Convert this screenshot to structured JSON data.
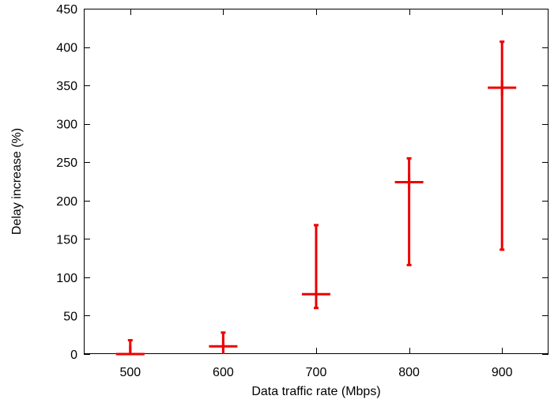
{
  "chart_data": {
    "type": "scatter",
    "title": "",
    "xlabel": "Data traffic rate (Mbps)",
    "ylabel": "Delay increase (%)",
    "xlim": [
      450,
      950
    ],
    "ylim": [
      0,
      450
    ],
    "xticks": [
      500,
      600,
      700,
      800,
      900
    ],
    "yticks": [
      0,
      50,
      100,
      150,
      200,
      250,
      300,
      350,
      400,
      450
    ],
    "grid": false,
    "legend": "none",
    "series": [
      {
        "color": "#ee0000",
        "marker": "plus",
        "points": [
          {
            "x": 500,
            "y": 0,
            "ymin": 0,
            "ymax": 18
          },
          {
            "x": 600,
            "y": 10,
            "ymin": 0,
            "ymax": 28
          },
          {
            "x": 700,
            "y": 78,
            "ymin": 60,
            "ymax": 168
          },
          {
            "x": 800,
            "y": 224,
            "ymin": 116,
            "ymax": 255
          },
          {
            "x": 900,
            "y": 347,
            "ymin": 136,
            "ymax": 407
          }
        ]
      }
    ]
  }
}
